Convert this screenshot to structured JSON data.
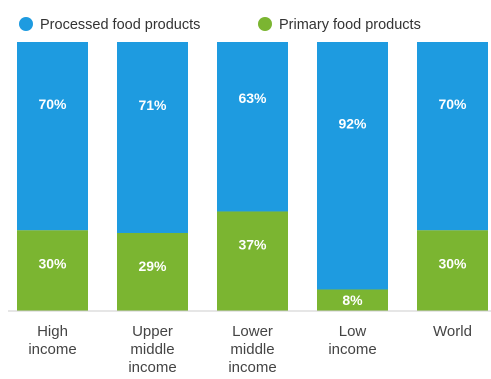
{
  "chart_data": {
    "type": "bar",
    "stacked": true,
    "percent": true,
    "categories": [
      [
        "High",
        "income"
      ],
      [
        "Upper",
        "middle",
        "income"
      ],
      [
        "Lower",
        "middle",
        "income"
      ],
      [
        "Low",
        "income"
      ],
      [
        "World"
      ]
    ],
    "series": [
      {
        "name": "Processed food products",
        "color": "#1e9be0",
        "values": [
          70,
          71,
          63,
          92,
          70
        ],
        "labels": [
          "70%",
          "71%",
          "63%",
          "92%",
          "70%"
        ]
      },
      {
        "name": "Primary food products",
        "color": "#7bb531",
        "values": [
          30,
          29,
          37,
          8,
          30
        ],
        "labels": [
          "30%",
          "29%",
          "37%",
          "8%",
          "30%"
        ]
      }
    ],
    "ylim": [
      0,
      100
    ],
    "legend_position": "top-left",
    "grid": false,
    "title": "",
    "xlabel": "",
    "ylabel": ""
  }
}
